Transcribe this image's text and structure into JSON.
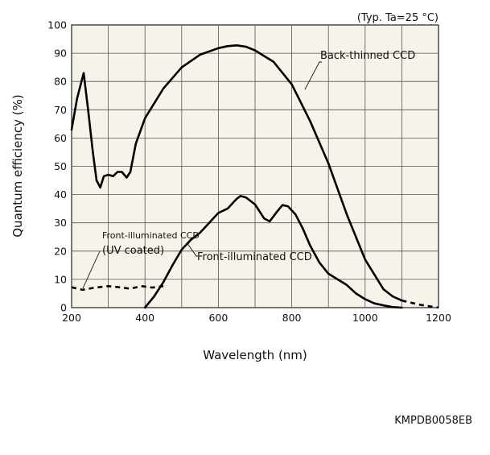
{
  "chart_data": {
    "type": "line",
    "note": "(Typ. Ta=25 °C)",
    "xlabel": "Wavelength (nm)",
    "ylabel": "Quantum efficiency (%)",
    "xlim": [
      200,
      1200
    ],
    "ylim": [
      0,
      100
    ],
    "xticks": [
      200,
      400,
      600,
      800,
      1000,
      1200
    ],
    "yticks": [
      0,
      10,
      20,
      30,
      40,
      50,
      60,
      70,
      80,
      90,
      100
    ],
    "grid": true,
    "x_grid_step": 100,
    "y_grid_step": 10,
    "series": [
      {
        "name": "Back-thinned CCD",
        "style": "solid",
        "points": [
          [
            200,
            63
          ],
          [
            215,
            74
          ],
          [
            233,
            83
          ],
          [
            245,
            70
          ],
          [
            258,
            55
          ],
          [
            268,
            45
          ],
          [
            278,
            42.5
          ],
          [
            288,
            46.5
          ],
          [
            300,
            47
          ],
          [
            313,
            46.5
          ],
          [
            325,
            48
          ],
          [
            337,
            48
          ],
          [
            350,
            46
          ],
          [
            360,
            48
          ],
          [
            375,
            58
          ],
          [
            400,
            67
          ],
          [
            450,
            77.5
          ],
          [
            500,
            85
          ],
          [
            550,
            89.5
          ],
          [
            600,
            91.8
          ],
          [
            625,
            92.5
          ],
          [
            650,
            92.8
          ],
          [
            675,
            92.3
          ],
          [
            700,
            91
          ],
          [
            750,
            87
          ],
          [
            800,
            79
          ],
          [
            850,
            66
          ],
          [
            900,
            51
          ],
          [
            950,
            33
          ],
          [
            1000,
            17
          ],
          [
            1050,
            6.5
          ],
          [
            1075,
            4
          ],
          [
            1100,
            2.5
          ]
        ]
      },
      {
        "name": "Back-thinned CCD (extension)",
        "style": "dashed",
        "points": [
          [
            1100,
            2.5
          ],
          [
            1150,
            1
          ],
          [
            1200,
            0
          ]
        ]
      },
      {
        "name": "Front-illuminated CCD",
        "style": "solid",
        "points": [
          [
            400,
            0
          ],
          [
            425,
            4
          ],
          [
            450,
            9
          ],
          [
            475,
            15
          ],
          [
            500,
            20.5
          ],
          [
            525,
            24
          ],
          [
            550,
            26.5
          ],
          [
            575,
            30
          ],
          [
            600,
            33.5
          ],
          [
            625,
            35
          ],
          [
            650,
            38.5
          ],
          [
            660,
            39.5
          ],
          [
            675,
            39
          ],
          [
            700,
            36.5
          ],
          [
            725,
            31.5
          ],
          [
            740,
            30.5
          ],
          [
            760,
            34
          ],
          [
            775,
            36.3
          ],
          [
            790,
            35.8
          ],
          [
            810,
            33
          ],
          [
            830,
            28
          ],
          [
            850,
            22
          ],
          [
            875,
            16
          ],
          [
            900,
            12
          ],
          [
            925,
            10
          ],
          [
            950,
            8
          ],
          [
            975,
            5
          ],
          [
            1000,
            3
          ],
          [
            1025,
            1.5
          ],
          [
            1050,
            0.8
          ],
          [
            1075,
            0.2
          ],
          [
            1100,
            0
          ]
        ]
      },
      {
        "name": "Front-illuminated CCD (UV coated)",
        "style": "dashed",
        "points": [
          [
            200,
            7.2
          ],
          [
            230,
            6.3
          ],
          [
            260,
            7
          ],
          [
            300,
            7.6
          ],
          [
            330,
            7.2
          ],
          [
            360,
            6.7
          ],
          [
            390,
            7.6
          ],
          [
            420,
            7.1
          ],
          [
            450,
            7.6
          ]
        ]
      }
    ],
    "labels": {
      "back_thinned": "Back-thinned CCD",
      "front_illuminated": "Front-illuminated CCD",
      "front_uv_line1": "Front-illuminated CCD",
      "front_uv_line2": "(UV coated)"
    }
  },
  "document_code": "KMPDB0058EB"
}
